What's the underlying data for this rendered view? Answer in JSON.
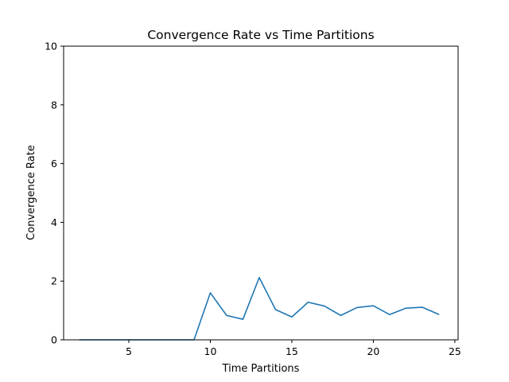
{
  "chart_data": {
    "type": "line",
    "title": "Convergence Rate vs Time Partitions",
    "xlabel": "Time Partitions",
    "ylabel": "Convergence Rate",
    "xlim": [
      1,
      25.2
    ],
    "ylim": [
      0,
      10
    ],
    "x_ticks": [
      5,
      10,
      15,
      20,
      25
    ],
    "y_ticks": [
      0,
      2,
      4,
      6,
      8,
      10
    ],
    "grid": false,
    "legend": "none",
    "line_color": "#1f77b4",
    "series": [
      {
        "x": [
          2,
          3,
          4,
          5,
          6,
          7,
          8,
          9,
          10,
          11,
          12,
          13,
          14,
          15,
          16,
          17,
          18,
          19,
          20,
          21,
          22,
          23,
          24
        ],
        "values": [
          0,
          0,
          0,
          0,
          0,
          0,
          0,
          0,
          1.6,
          0.83,
          0.7,
          2.12,
          1.03,
          0.78,
          1.28,
          1.15,
          0.83,
          1.1,
          1.16,
          0.86,
          1.08,
          1.11,
          0.87
        ]
      }
    ]
  }
}
